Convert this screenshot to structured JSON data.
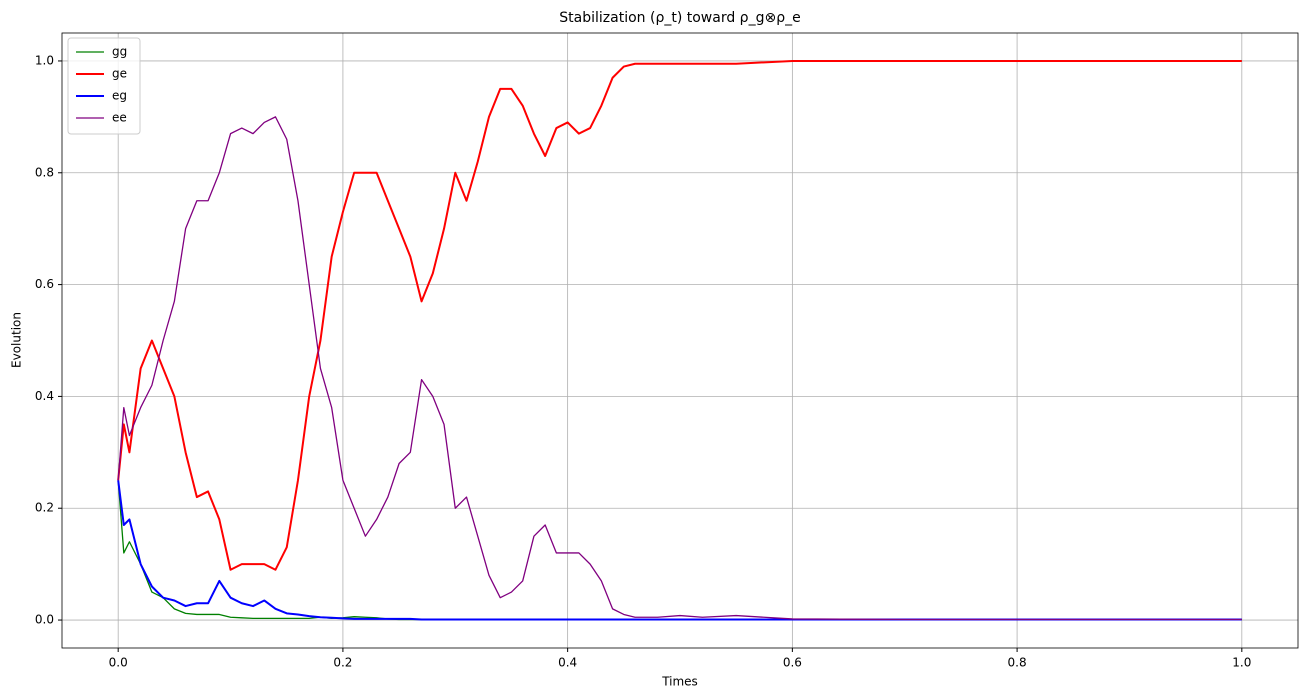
{
  "chart_data": {
    "type": "line",
    "title": "Stabilization (ρ_t) toward ρ_g⊗ρ_e",
    "xlabel": "Times",
    "ylabel": "Evolution",
    "x": [
      0,
      0.005,
      0.01,
      0.02,
      0.03,
      0.04,
      0.05,
      0.06,
      0.07,
      0.08,
      0.09,
      0.1,
      0.11,
      0.12,
      0.13,
      0.14,
      0.15,
      0.16,
      0.17,
      0.18,
      0.19,
      0.2,
      0.21,
      0.22,
      0.23,
      0.24,
      0.25,
      0.26,
      0.27,
      0.28,
      0.29,
      0.3,
      0.31,
      0.32,
      0.33,
      0.34,
      0.35,
      0.36,
      0.37,
      0.38,
      0.39,
      0.4,
      0.41,
      0.42,
      0.43,
      0.44,
      0.45,
      0.46,
      0.48,
      0.5,
      0.52,
      0.55,
      0.6,
      0.7,
      0.8,
      0.9,
      1.0
    ],
    "series": [
      {
        "name": "gg",
        "color": "#008000",
        "linewidth": 1.3,
        "values": [
          0.25,
          0.12,
          0.14,
          0.1,
          0.05,
          0.04,
          0.02,
          0.012,
          0.01,
          0.01,
          0.01,
          0.005,
          0.004,
          0.003,
          0.003,
          0.003,
          0.003,
          0.003,
          0.003,
          0.005,
          0.003,
          0.004,
          0.006,
          0.005,
          0.004,
          0.002,
          0.001,
          0.001,
          0.001,
          0.001,
          0.001,
          0.001,
          0.001,
          0.001,
          0.001,
          0.001,
          0.001,
          0.001,
          0.001,
          0.001,
          0.001,
          0.001,
          0.001,
          0.001,
          0.001,
          0.001,
          0.001,
          0.001,
          0.001,
          0.001,
          0.001,
          0.001,
          0.001,
          0.001,
          0.001,
          0.001,
          0.001
        ]
      },
      {
        "name": "ge",
        "color": "#ff0000",
        "linewidth": 2,
        "values": [
          0.25,
          0.35,
          0.3,
          0.45,
          0.5,
          0.45,
          0.4,
          0.3,
          0.22,
          0.23,
          0.18,
          0.09,
          0.1,
          0.1,
          0.1,
          0.09,
          0.13,
          0.25,
          0.4,
          0.5,
          0.65,
          0.73,
          0.8,
          0.8,
          0.8,
          0.75,
          0.7,
          0.65,
          0.57,
          0.62,
          0.7,
          0.8,
          0.75,
          0.82,
          0.9,
          0.95,
          0.95,
          0.92,
          0.87,
          0.83,
          0.88,
          0.89,
          0.87,
          0.88,
          0.92,
          0.97,
          0.99,
          0.995,
          0.995,
          0.995,
          0.995,
          0.995,
          1.0,
          1.0,
          1.0,
          1.0,
          1.0
        ]
      },
      {
        "name": "eg",
        "color": "#0000ff",
        "linewidth": 2,
        "values": [
          0.25,
          0.17,
          0.18,
          0.1,
          0.06,
          0.04,
          0.035,
          0.025,
          0.03,
          0.03,
          0.07,
          0.04,
          0.03,
          0.025,
          0.035,
          0.02,
          0.012,
          0.01,
          0.007,
          0.005,
          0.004,
          0.003,
          0.002,
          0.002,
          0.002,
          0.002,
          0.002,
          0.002,
          0.001,
          0.001,
          0.001,
          0.001,
          0.001,
          0.001,
          0.001,
          0.001,
          0.001,
          0.001,
          0.001,
          0.001,
          0.001,
          0.001,
          0.001,
          0.001,
          0.001,
          0.001,
          0.001,
          0.001,
          0.001,
          0.001,
          0.001,
          0.001,
          0.001,
          0.001,
          0.001,
          0.001,
          0.001
        ]
      },
      {
        "name": "ee",
        "color": "#800080",
        "linewidth": 1.3,
        "values": [
          0.25,
          0.38,
          0.33,
          0.38,
          0.42,
          0.5,
          0.57,
          0.7,
          0.75,
          0.75,
          0.8,
          0.87,
          0.88,
          0.87,
          0.89,
          0.9,
          0.86,
          0.75,
          0.6,
          0.45,
          0.38,
          0.25,
          0.2,
          0.15,
          0.18,
          0.22,
          0.28,
          0.3,
          0.43,
          0.4,
          0.35,
          0.2,
          0.22,
          0.15,
          0.08,
          0.04,
          0.05,
          0.07,
          0.15,
          0.17,
          0.12,
          0.12,
          0.12,
          0.1,
          0.07,
          0.02,
          0.01,
          0.005,
          0.005,
          0.008,
          0.005,
          0.008,
          0.002,
          0.001,
          0.001,
          0.001,
          0.001
        ]
      }
    ],
    "xlim": [
      -0.05,
      1.05
    ],
    "xticks": [
      {
        "value": 0,
        "label": "0.0"
      },
      0.2,
      0.4,
      0.6,
      0.8,
      {
        "value": 1,
        "label": "1.0"
      }
    ],
    "ylim": [
      -0.05,
      1.05
    ],
    "yticks": [
      {
        "value": 0,
        "label": "0.0"
      },
      0.2,
      0.4,
      0.6,
      0.8,
      {
        "value": 1,
        "label": "1.0"
      }
    ],
    "grid": true,
    "legend": "upper left"
  }
}
